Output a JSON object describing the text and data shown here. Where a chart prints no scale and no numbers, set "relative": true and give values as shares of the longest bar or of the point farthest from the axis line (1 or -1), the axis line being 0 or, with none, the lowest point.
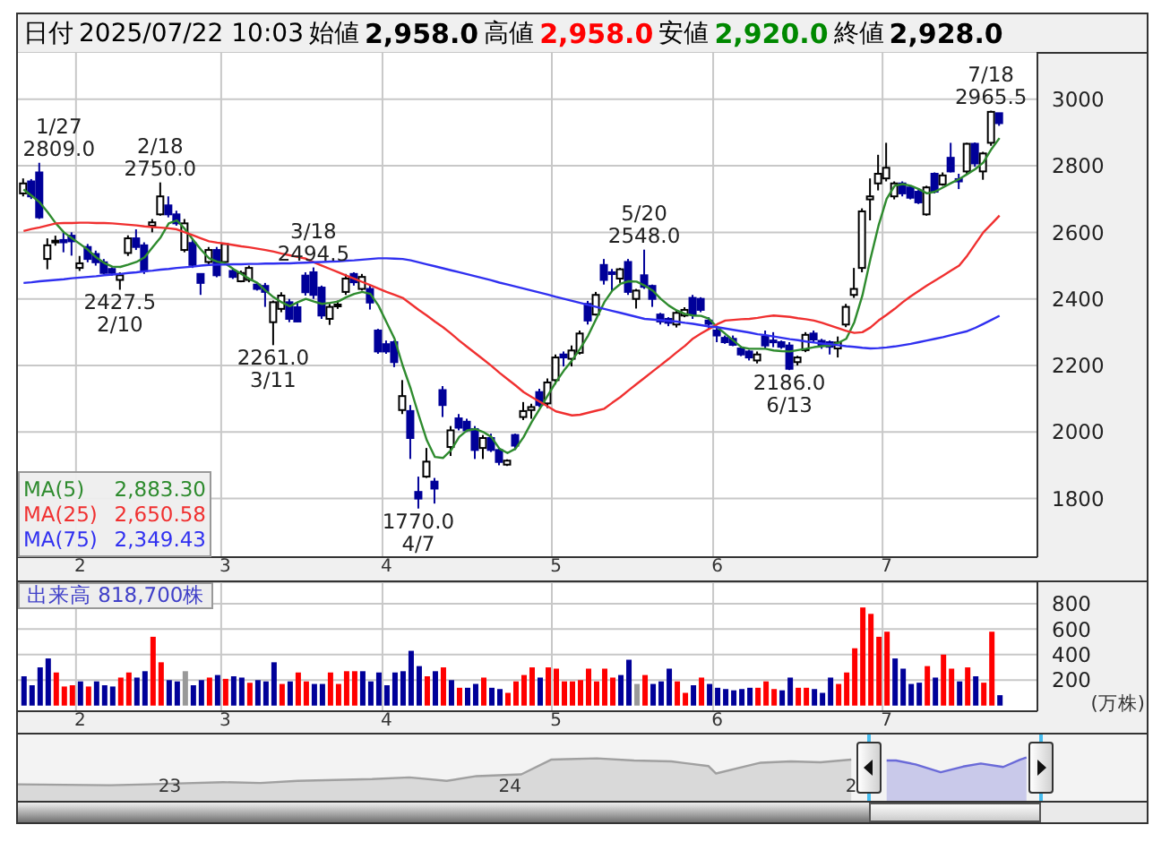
{
  "chart_data": [
    {
      "type": "candlestick",
      "annotations": [
        "日付",
        "2025/07/22 10:03",
        "始値",
        "2,958.0",
        "高値",
        "2,958.0",
        "安値",
        "2,920.0",
        "終値",
        "2,928.0",
        "2,883.30",
        "2,650.58",
        "2,349.43"
      ],
      "categories": [
        null,
        null,
        null,
        null,
        null,
        null,
        null,
        "2",
        null,
        null,
        null,
        null,
        null,
        null,
        null,
        null,
        null,
        null,
        null,
        null,
        null,
        null,
        null,
        null,
        null,
        "3",
        null,
        null,
        null,
        null,
        null,
        null,
        null,
        null,
        null,
        null,
        null,
        null,
        null,
        null,
        null,
        null,
        null,
        null,
        null,
        "4",
        null,
        null,
        null,
        null,
        null,
        null,
        null,
        null,
        null,
        null,
        null,
        null,
        null,
        null,
        null,
        null,
        null,
        null,
        null,
        null,
        "5",
        null,
        null,
        null,
        null,
        null,
        null,
        null,
        null,
        null,
        null,
        null,
        null,
        null,
        null,
        null,
        null,
        null,
        null,
        null,
        "6",
        null,
        null,
        null,
        null,
        null,
        null,
        null,
        null,
        null,
        null,
        null,
        null,
        null,
        null,
        null,
        null,
        null,
        null,
        null,
        null,
        "7",
        null,
        null,
        null,
        null,
        null,
        null,
        null,
        null,
        null,
        null,
        null,
        null,
        null,
        null
      ],
      "ohlc": [
        [
          2717,
          2762,
          2708,
          2747
        ],
        [
          2753,
          2760,
          2700,
          2708
        ],
        [
          2780,
          2809,
          2640,
          2645
        ],
        [
          2520,
          2582,
          2489,
          2561
        ],
        [
          2570,
          2590,
          2560,
          2575
        ],
        [
          2577,
          2600,
          2540,
          2570
        ],
        [
          2590,
          2600,
          2530,
          2573
        ],
        [
          2493,
          2529,
          2484,
          2507
        ],
        [
          2556,
          2565,
          2510,
          2520
        ],
        [
          2535,
          2545,
          2500,
          2510
        ],
        [
          2510,
          2520,
          2475,
          2478
        ],
        [
          2490,
          2495,
          2470,
          2478
        ],
        [
          2457,
          2480,
          2427.5,
          2471
        ],
        [
          2538,
          2591,
          2529,
          2582
        ],
        [
          2582,
          2609,
          2547,
          2556
        ],
        [
          2561,
          2570,
          2475,
          2484
        ],
        [
          2620,
          2640,
          2600,
          2630
        ],
        [
          2654,
          2750,
          2650,
          2708
        ],
        [
          2681,
          2708,
          2645,
          2654
        ],
        [
          2654,
          2665,
          2620,
          2627
        ],
        [
          2547,
          2640,
          2540,
          2627
        ],
        [
          2568,
          2582,
          2493,
          2502
        ],
        [
          2475,
          2475,
          2412,
          2448
        ],
        [
          2511,
          2556,
          2502,
          2547
        ],
        [
          2547,
          2556,
          2465,
          2471
        ],
        [
          2511,
          2568,
          2502,
          2565
        ],
        [
          2484,
          2490,
          2460,
          2466
        ],
        [
          2453,
          2485,
          2450,
          2478
        ],
        [
          2457,
          2500,
          2450,
          2493
        ],
        [
          2443,
          2450,
          2425,
          2430
        ],
        [
          2439,
          2448,
          2376,
          2421
        ],
        [
          2330,
          2395,
          2261,
          2390
        ],
        [
          2370,
          2420,
          2360,
          2410
        ],
        [
          2390,
          2400,
          2330,
          2340
        ],
        [
          2375,
          2390,
          2330,
          2332
        ],
        [
          2470,
          2480,
          2410,
          2420
        ],
        [
          2480,
          2494.5,
          2400,
          2412
        ],
        [
          2434,
          2440,
          2340,
          2350
        ],
        [
          2340,
          2385,
          2322,
          2376
        ],
        [
          2378,
          2395,
          2370,
          2383
        ],
        [
          2421,
          2475,
          2412,
          2461
        ],
        [
          2475,
          2480,
          2440,
          2450
        ],
        [
          2430,
          2475,
          2425,
          2466
        ],
        [
          2430,
          2440,
          2368,
          2389
        ],
        [
          2305,
          2310,
          2235,
          2242
        ],
        [
          2264,
          2275,
          2235,
          2242
        ],
        [
          2270,
          2275,
          2195,
          2210
        ],
        [
          2066,
          2156,
          2054,
          2108
        ],
        [
          2063,
          2081,
          1919,
          1982
        ],
        [
          1820,
          1866,
          1770,
          1800
        ],
        [
          1866,
          1952,
          1862,
          1911
        ],
        [
          1851,
          1862,
          1785,
          1830
        ],
        [
          2126,
          2138,
          2045,
          2081
        ],
        [
          1955,
          2018,
          1928,
          2005
        ],
        [
          2041,
          2054,
          2005,
          2013
        ],
        [
          2031,
          2040,
          2000,
          2005
        ],
        [
          2009,
          2018,
          1919,
          1946
        ],
        [
          1952,
          1991,
          1919,
          1982
        ],
        [
          1982,
          1995,
          1940,
          1946
        ],
        [
          1946,
          1950,
          1900,
          1910
        ],
        [
          1902,
          1918,
          1898,
          1914
        ],
        [
          1991,
          1995,
          1946,
          1959
        ],
        [
          2045,
          2090,
          2036,
          2063
        ],
        [
          2066,
          2085,
          2040,
          2075
        ],
        [
          2120,
          2130,
          2075,
          2081
        ],
        [
          2086,
          2161,
          2072,
          2149
        ],
        [
          2156,
          2233,
          2143,
          2224
        ],
        [
          2233,
          2242,
          2197,
          2224
        ],
        [
          2220,
          2260,
          2197,
          2245
        ],
        [
          2238,
          2305,
          2233,
          2296
        ],
        [
          2385,
          2394,
          2323,
          2335
        ],
        [
          2353,
          2421,
          2350,
          2412
        ],
        [
          2502,
          2520,
          2443,
          2457
        ],
        [
          2480,
          2490,
          2421,
          2475
        ],
        [
          2461,
          2493,
          2448,
          2489
        ],
        [
          2511,
          2520,
          2412,
          2421
        ],
        [
          2400,
          2430,
          2371,
          2425
        ],
        [
          2471,
          2548,
          2430,
          2436
        ],
        [
          2439,
          2443,
          2376,
          2400
        ],
        [
          2353,
          2358,
          2323,
          2332
        ],
        [
          2340,
          2345,
          2318,
          2328
        ],
        [
          2323,
          2367,
          2314,
          2358
        ],
        [
          2350,
          2375,
          2345,
          2367
        ],
        [
          2403,
          2412,
          2340,
          2353
        ],
        [
          2400,
          2405,
          2360,
          2367
        ],
        [
          2335,
          2345,
          2310,
          2325
        ],
        [
          2305,
          2315,
          2270,
          2290
        ],
        [
          2283,
          2290,
          2265,
          2270
        ],
        [
          2280,
          2290,
          2258,
          2262
        ],
        [
          2251,
          2258,
          2228,
          2233
        ],
        [
          2242,
          2247,
          2215,
          2224
        ],
        [
          2215,
          2242,
          2206,
          2233
        ],
        [
          2287,
          2305,
          2251,
          2260
        ],
        [
          2275,
          2300,
          2255,
          2270
        ],
        [
          2270,
          2275,
          2250,
          2256
        ],
        [
          2260,
          2270,
          2186,
          2190
        ],
        [
          2210,
          2229,
          2200,
          2224
        ],
        [
          2246,
          2300,
          2240,
          2292
        ],
        [
          2296,
          2305,
          2270,
          2278
        ],
        [
          2274,
          2280,
          2250,
          2260
        ],
        [
          2270,
          2275,
          2233,
          2256
        ],
        [
          2251,
          2287,
          2224,
          2269
        ],
        [
          2323,
          2385,
          2315,
          2376
        ],
        [
          2412,
          2493,
          2403,
          2430
        ],
        [
          2493,
          2672,
          2480,
          2663
        ],
        [
          2699,
          2762,
          2636,
          2708
        ],
        [
          2747,
          2833,
          2726,
          2776
        ],
        [
          2762,
          2869,
          2753,
          2794
        ],
        [
          2708,
          2753,
          2699,
          2747
        ],
        [
          2747,
          2753,
          2708,
          2717
        ],
        [
          2735,
          2740,
          2699,
          2704
        ],
        [
          2722,
          2730,
          2685,
          2690
        ],
        [
          2654,
          2740,
          2650,
          2735
        ],
        [
          2776,
          2780,
          2717,
          2722
        ],
        [
          2744,
          2780,
          2740,
          2771
        ],
        [
          2824,
          2869,
          2780,
          2783
        ],
        [
          2760,
          2776,
          2730,
          2753
        ],
        [
          2783,
          2869,
          2776,
          2866
        ],
        [
          2866,
          2870,
          2797,
          2807
        ],
        [
          2783,
          2842,
          2758,
          2837
        ],
        [
          2869,
          2965.5,
          2860,
          2962
        ],
        [
          2958,
          2958,
          2920,
          2928
        ]
      ],
      "colors": [
        "#ffffff",
        "#000099",
        "#000099",
        "#ffffff",
        "#ffffff",
        "#000099",
        "#000099",
        "#ffffff",
        "#000099",
        "#000099",
        "#000099",
        "#000099",
        "#ffffff",
        "#ffffff",
        "#000099",
        "#000099",
        "#ffffff",
        "#ffffff",
        "#000099",
        "#000099",
        "#ffffff",
        "#000099",
        "#000099",
        "#ffffff",
        "#000099",
        "#ffffff",
        "#000099",
        "#ffffff",
        "#ffffff",
        "#000099",
        "#000099",
        "#ffffff",
        "#ffffff",
        "#000099",
        "#000099",
        "#000099",
        "#000099",
        "#000099",
        "#ffffff",
        "#ffffff",
        "#ffffff",
        "#000099",
        "#ffffff",
        "#000099",
        "#000099",
        "#000099",
        "#000099",
        "#ffffff",
        "#000099",
        "#000099",
        "#ffffff",
        "#000099",
        "#000099",
        "#ffffff",
        "#000099",
        "#000099",
        "#000099",
        "#ffffff",
        "#000099",
        "#000099",
        "#ffffff",
        "#000099",
        "#ffffff",
        "#ffffff",
        "#000099",
        "#ffffff",
        "#ffffff",
        "#000099",
        "#ffffff",
        "#ffffff",
        "#000099",
        "#ffffff",
        "#000099",
        "#000099",
        "#ffffff",
        "#000099",
        "#ffffff",
        "#000099",
        "#000099",
        "#000099",
        "#000099",
        "#ffffff",
        "#ffffff",
        "#000099",
        "#000099",
        "#000099",
        "#000099",
        "#000099",
        "#000099",
        "#000099",
        "#000099",
        "#ffffff",
        "#000099",
        "#000099",
        "#000099",
        "#000099",
        "#ffffff",
        "#ffffff",
        "#000099",
        "#000099",
        "#000099",
        "#ffffff",
        "#ffffff",
        "#ffffff",
        "#ffffff",
        "#ffffff",
        "#ffffff",
        "#ffffff",
        "#ffffff",
        "#000099",
        "#000099",
        "#000099",
        "#ffffff",
        "#000099",
        "#ffffff",
        "#000099",
        "#000099",
        "#ffffff",
        "#000099",
        "#ffffff",
        "#ffffff",
        "#000099"
      ],
      "value_labels": [
        null,
        null,
        "1/27\n2809.0",
        null,
        null,
        null,
        null,
        null,
        null,
        null,
        null,
        null,
        "2427.5\n2/10",
        null,
        null,
        null,
        null,
        "2/18\n2750.0",
        null,
        null,
        null,
        null,
        null,
        null,
        null,
        null,
        null,
        null,
        null,
        null,
        null,
        "2261.0\n3/11",
        null,
        null,
        null,
        null,
        "3/18\n2494.5",
        null,
        null,
        null,
        null,
        null,
        null,
        null,
        null,
        null,
        null,
        null,
        null,
        "1770.0\n4/7",
        null,
        null,
        null,
        null,
        null,
        null,
        null,
        null,
        null,
        null,
        null,
        null,
        null,
        null,
        null,
        null,
        null,
        null,
        null,
        null,
        null,
        null,
        null,
        null,
        null,
        null,
        null,
        "5/20\n2548.0",
        null,
        null,
        null,
        null,
        null,
        null,
        null,
        null,
        null,
        null,
        null,
        null,
        null,
        null,
        null,
        null,
        null,
        "2186.0\n6/13",
        null,
        null,
        null,
        null,
        null,
        null,
        null,
        null,
        null,
        null,
        null,
        null,
        null,
        null,
        null,
        null,
        null,
        null,
        null,
        null,
        null,
        null,
        null,
        null,
        "7/18\n2965.5",
        null
      ],
      "series": [
        {
          "type": "line",
          "name": "MA(5)",
          "color": "#2e8b2e",
          "values": [
            2729,
            2710,
            2690,
            2660,
            2627,
            2600,
            2582,
            2565,
            2547,
            2525,
            2508,
            2497,
            2496,
            2503,
            2511,
            2525,
            2555,
            2585,
            2627,
            2636,
            2610,
            2578,
            2548,
            2522,
            2512,
            2507,
            2490,
            2475,
            2460,
            2448,
            2425,
            2405,
            2390,
            2378,
            2390,
            2400,
            2392,
            2385,
            2388,
            2392,
            2405,
            2415,
            2421,
            2415,
            2380,
            2330,
            2280,
            2200,
            2130,
            2050,
            1975,
            1925,
            1922,
            1945,
            1985,
            2005,
            2009,
            2000,
            1985,
            1950,
            1937,
            1950,
            1985,
            2030,
            2070,
            2110,
            2150,
            2185,
            2215,
            2250,
            2290,
            2340,
            2390,
            2425,
            2445,
            2453,
            2452,
            2440,
            2425,
            2400,
            2380,
            2365,
            2355,
            2350,
            2349,
            2340,
            2315,
            2295,
            2275,
            2255,
            2250,
            2250,
            2250,
            2245,
            2243,
            2242,
            2246,
            2250,
            2255,
            2258,
            2260,
            2268,
            2280,
            2330,
            2410,
            2520,
            2620,
            2700,
            2740,
            2745,
            2740,
            2730,
            2717,
            2722,
            2735,
            2748,
            2760,
            2775,
            2790,
            2810,
            2850,
            2883.3
          ]
        },
        {
          "type": "line",
          "name": "MA(25)",
          "color": "#f03030",
          "values": [
            2604,
            2610,
            2615,
            2621,
            2627,
            2628,
            2628,
            2629,
            2629,
            2628,
            2628,
            2627,
            2625,
            2623,
            2621,
            2618,
            2616,
            2614,
            2612,
            2609,
            2600,
            2591,
            2582,
            2573,
            2569,
            2566,
            2562,
            2558,
            2555,
            2551,
            2547,
            2542,
            2536,
            2531,
            2526,
            2521,
            2510,
            2500,
            2490,
            2480,
            2470,
            2461,
            2451,
            2441,
            2431,
            2421,
            2412,
            2403,
            2385,
            2367,
            2350,
            2332,
            2315,
            2296,
            2275,
            2256,
            2237,
            2218,
            2199,
            2178,
            2159,
            2140,
            2120,
            2105,
            2091,
            2077,
            2062,
            2056,
            2050,
            2052,
            2058,
            2064,
            2070,
            2088,
            2105,
            2125,
            2144,
            2163,
            2182,
            2201,
            2220,
            2240,
            2259,
            2281,
            2296,
            2310,
            2324,
            2335,
            2337,
            2339,
            2340,
            2343,
            2347,
            2350,
            2348,
            2346,
            2342,
            2339,
            2335,
            2328,
            2320,
            2312,
            2304,
            2298,
            2300,
            2314,
            2335,
            2352,
            2370,
            2390,
            2408,
            2424,
            2440,
            2455,
            2470,
            2485,
            2500,
            2530,
            2565,
            2600,
            2625,
            2650.58
          ]
        },
        {
          "type": "line",
          "name": "MA(75)",
          "color": "#3030f0",
          "values": [
            2448,
            2450,
            2453,
            2455,
            2457,
            2459,
            2462,
            2464,
            2466,
            2468,
            2471,
            2473,
            2475,
            2478,
            2480,
            2483,
            2485,
            2488,
            2490,
            2493,
            2495,
            2497,
            2500,
            2502,
            2503,
            2503,
            2504,
            2504,
            2505,
            2505,
            2506,
            2506,
            2507,
            2507,
            2508,
            2509,
            2510,
            2511,
            2512,
            2513,
            2515,
            2516,
            2518,
            2520,
            2522,
            2522,
            2521,
            2520,
            2516,
            2510,
            2504,
            2498,
            2492,
            2486,
            2480,
            2474,
            2468,
            2462,
            2456,
            2449,
            2443,
            2437,
            2431,
            2425,
            2419,
            2413,
            2406,
            2400,
            2394,
            2388,
            2382,
            2376,
            2370,
            2364,
            2358,
            2352,
            2346,
            2340,
            2338,
            2336,
            2334,
            2332,
            2328,
            2325,
            2321,
            2317,
            2315,
            2311,
            2307,
            2303,
            2299,
            2294,
            2291,
            2287,
            2283,
            2279,
            2276,
            2272,
            2269,
            2266,
            2264,
            2261,
            2258,
            2256,
            2253,
            2251,
            2252,
            2254,
            2257,
            2261,
            2265,
            2270,
            2275,
            2280,
            2285,
            2291,
            2297,
            2303,
            2313,
            2325,
            2337,
            2349.43
          ]
        }
      ],
      "ylim": [
        1624,
        3142
      ],
      "yticks": [
        1800,
        2000,
        2200,
        2400,
        2600,
        2800,
        3000
      ],
      "grid": true,
      "legend": "bottom left",
      "marker": "none"
    },
    {
      "type": "bar",
      "title": "出来高 818,700株",
      "ylabel": "(万株)",
      "categories": [
        null,
        null,
        null,
        null,
        null,
        null,
        null,
        "2",
        null,
        null,
        null,
        null,
        null,
        null,
        null,
        null,
        null,
        null,
        null,
        null,
        null,
        null,
        null,
        null,
        null,
        "3",
        null,
        null,
        null,
        null,
        null,
        null,
        null,
        null,
        null,
        null,
        null,
        null,
        null,
        null,
        null,
        null,
        null,
        null,
        null,
        "4",
        null,
        null,
        null,
        null,
        null,
        null,
        null,
        null,
        null,
        null,
        null,
        null,
        null,
        null,
        null,
        null,
        null,
        null,
        null,
        null,
        "5",
        null,
        null,
        null,
        null,
        null,
        null,
        null,
        null,
        null,
        null,
        null,
        null,
        null,
        null,
        null,
        null,
        null,
        null,
        null,
        "6",
        null,
        null,
        null,
        null,
        null,
        null,
        null,
        null,
        null,
        null,
        null,
        null,
        null,
        null,
        null,
        null,
        null,
        null,
        null,
        null,
        "7",
        null,
        null,
        null,
        null,
        null,
        null,
        null,
        null,
        null,
        null,
        null,
        null,
        null,
        null
      ],
      "values": [
        230,
        160,
        300,
        370,
        260,
        150,
        160,
        190,
        150,
        190,
        160,
        150,
        220,
        260,
        220,
        270,
        540,
        340,
        200,
        190,
        270,
        160,
        200,
        220,
        240,
        210,
        230,
        220,
        180,
        200,
        190,
        340,
        170,
        190,
        260,
        190,
        170,
        170,
        260,
        170,
        270,
        270,
        270,
        190,
        260,
        160,
        260,
        270,
        430,
        310,
        230,
        270,
        300,
        200,
        140,
        140,
        170,
        220,
        140,
        130,
        100,
        190,
        240,
        300,
        220,
        300,
        290,
        190,
        190,
        200,
        290,
        190,
        290,
        220,
        240,
        360,
        170,
        240,
        170,
        190,
        290,
        190,
        100,
        160,
        220,
        170,
        140,
        130,
        120,
        130,
        140,
        140,
        190,
        130,
        120,
        220,
        140,
        140,
        130,
        100,
        220,
        170,
        260,
        450,
        770,
        720,
        540,
        580,
        370,
        290,
        170,
        180,
        310,
        220,
        400,
        290,
        190,
        300,
        230,
        180,
        580,
        81.87
      ],
      "colors": [
        "#000099",
        "#000099",
        "#000099",
        "#000099",
        "#ff0000",
        "#ff0000",
        "#ff0000",
        "#000099",
        "#ff0000",
        "#000099",
        "#000099",
        "#000099",
        "#ff0000",
        "#ff0000",
        "#000099",
        "#000099",
        "#ff0000",
        "#ff0000",
        "#000099",
        "#000099",
        "#999999",
        "#000099",
        "#000099",
        "#ff0000",
        "#000099",
        "#ff0000",
        "#000099",
        "#000099",
        "#ff0000",
        "#000099",
        "#000099",
        "#000099",
        "#ff0000",
        "#000099",
        "#ff0000",
        "#ff0000",
        "#000099",
        "#000099",
        "#ff0000",
        "#ff0000",
        "#ff0000",
        "#ff0000",
        "#000099",
        "#000099",
        "#000099",
        "#000099",
        "#000099",
        "#000099",
        "#000099",
        "#000099",
        "#ff0000",
        "#000099",
        "#ff0000",
        "#000099",
        "#ff0000",
        "#000099",
        "#000099",
        "#ff0000",
        "#000099",
        "#000099",
        "#ff0000",
        "#ff0000",
        "#ff0000",
        "#ff0000",
        "#000099",
        "#ff0000",
        "#ff0000",
        "#ff0000",
        "#ff0000",
        "#ff0000",
        "#ff0000",
        "#ff0000",
        "#ff0000",
        "#ff0000",
        "#000099",
        "#000099",
        "#999999",
        "#ff0000",
        "#000099",
        "#000099",
        "#000099",
        "#ff0000",
        "#ff0000",
        "#000099",
        "#ff0000",
        "#000099",
        "#000099",
        "#000099",
        "#000099",
        "#000099",
        "#000099",
        "#ff0000",
        "#ff0000",
        "#ff0000",
        "#000099",
        "#000099",
        "#ff0000",
        "#ff0000",
        "#000099",
        "#000099",
        "#000099",
        "#ff0000",
        "#ff0000",
        "#ff0000",
        "#ff0000",
        "#ff0000",
        "#ff0000",
        "#ff0000",
        "#000099",
        "#000099",
        "#000099",
        "#000099",
        "#ff0000",
        "#000099",
        "#ff0000",
        "#ff0000",
        "#000099",
        "#ff0000",
        "#000099",
        "#ff0000",
        "#ff0000",
        "#000099"
      ],
      "ylim": [
        -44,
        968
      ],
      "yticks": [
        200,
        400,
        600,
        800
      ],
      "grid": true
    },
    {
      "type": "area",
      "relative": true,
      "xlim": [
        "2022-07-22",
        "2025-11-14"
      ],
      "xticks": [
        {
          "value": "2023-01-01",
          "label": "23"
        },
        {
          "value": "2024-01-01",
          "label": "24"
        },
        {
          "value": "2025-01-01",
          "label": "2"
        }
      ],
      "tick_labels": "x",
      "series": [
        {
          "color": "#a0a0a0",
          "x": [
            "2022-07-22",
            "2022-10-29",
            "2022-12-08",
            "2023-01-10",
            "2023-02-27",
            "2023-04-08",
            "2023-05-18",
            "2023-06-27",
            "2023-08-06",
            "2023-09-15",
            "2023-10-25",
            "2023-11-26",
            "2024-01-13",
            "2024-02-14",
            "2024-03-02",
            "2024-04-03",
            "2024-05-13",
            "2024-06-22",
            "2024-08-01",
            "2024-08-09",
            "2024-09-10",
            "2024-09-26",
            "2024-10-28",
            "2024-11-29",
            "2025-01-01"
          ],
          "values": [
            0.38,
            0.36,
            0.38,
            0.4,
            0.43,
            0.41,
            0.46,
            0.48,
            0.5,
            0.54,
            0.46,
            0.57,
            0.61,
            0.95,
            0.96,
            0.98,
            0.93,
            0.91,
            0.8,
            0.63,
            0.8,
            0.88,
            0.91,
            0.89,
            0.95
          ]
        },
        {
          "color": "#6a6ad8",
          "x": [
            "2025-02-08",
            "2025-02-18",
            "2025-03-11",
            "2025-04-07",
            "2025-05-01",
            "2025-05-20",
            "2025-06-13",
            "2025-07-01",
            "2025-07-08"
          ],
          "values": [
            0.93,
            0.93,
            0.84,
            0.66,
            0.79,
            0.86,
            0.78,
            0.95,
            1
          ]
        }
      ]
    }
  ]
}
